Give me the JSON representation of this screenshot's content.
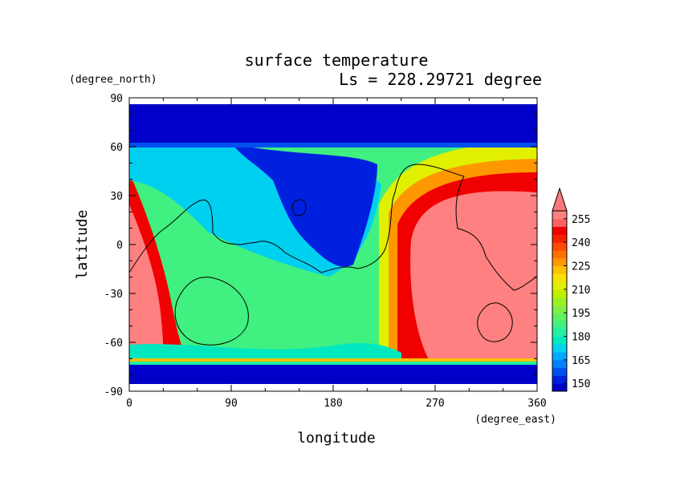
{
  "chart_data": {
    "type": "heatmap",
    "title": "surface temperature",
    "subtitle": "Ls = 228.29721 degree",
    "xlabel": "longitude",
    "ylabel": "latitude",
    "x_unit": "(degree_east)",
    "y_unit": "(degree_north)",
    "xlim": [
      0,
      360
    ],
    "ylim": [
      -90,
      90
    ],
    "x_ticks": [
      0,
      90,
      180,
      270,
      360
    ],
    "y_ticks": [
      90,
      60,
      30,
      0,
      -30,
      -60,
      -90
    ],
    "grid": false,
    "colorbar": {
      "levels": [
        145,
        150,
        155,
        160,
        165,
        170,
        175,
        180,
        185,
        190,
        195,
        200,
        205,
        210,
        215,
        220,
        225,
        230,
        235,
        240,
        245,
        250,
        255,
        260
      ],
      "labels": [
        150,
        165,
        180,
        195,
        210,
        225,
        240,
        255
      ],
      "colors": [
        "#0000c8",
        "#0020e0",
        "#0050f0",
        "#0080ff",
        "#00a8ff",
        "#00d0f0",
        "#00e8c0",
        "#20f0a0",
        "#40f080",
        "#60f060",
        "#80f040",
        "#a0f020",
        "#c0f000",
        "#e0f000",
        "#f8e000",
        "#ffc000",
        "#ff9800",
        "#ff7000",
        "#ff4800",
        "#f82000",
        "#f00000",
        "#ff6060",
        "#ff8080"
      ],
      "extend_max_color": "#ff7878"
    }
  }
}
